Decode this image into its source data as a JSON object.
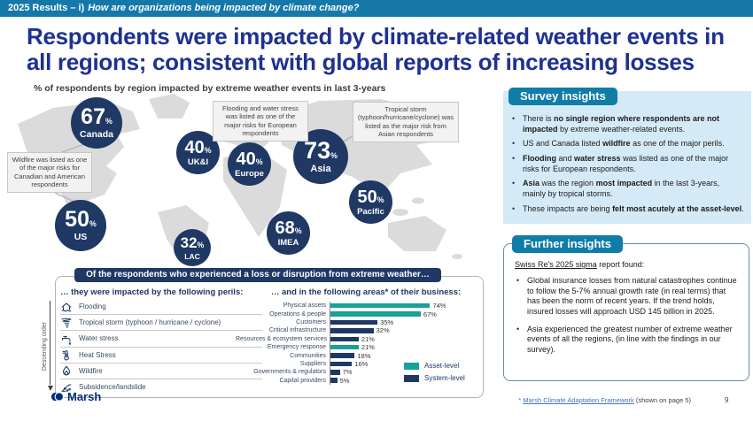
{
  "header": {
    "prefix": "2025 Results – i)",
    "question": "How are organizations being impacted by climate change?"
  },
  "title": {
    "line1": "Respondents were impacted by climate-related weather events in",
    "line2": "all regions; consistent with global reports of increasing losses"
  },
  "map": {
    "subtitle": "% of respondents by region impacted by extreme weather events in last 3-years",
    "percent_sign": "%",
    "regions": [
      {
        "label": "Canada",
        "value": "67"
      },
      {
        "label": "UK&I",
        "value": "40"
      },
      {
        "label": "Europe",
        "value": "40"
      },
      {
        "label": "Asia",
        "value": "73"
      },
      {
        "label": "Pacific",
        "value": "50"
      },
      {
        "label": "US",
        "value": "50"
      },
      {
        "label": "LAC",
        "value": "32"
      },
      {
        "label": "IMEA",
        "value": "68"
      }
    ],
    "callouts": [
      {
        "text": "Wildfire was listed as one of the major risks for Canadian and American respondents"
      },
      {
        "text": "Flooding and water stress was listed as one of the major risks for European respondents"
      },
      {
        "text": "Tropical storm (typhoon/hurricane/cyclone) was listed as the major risk from Asian respondents"
      }
    ]
  },
  "survey_insights": {
    "title": "Survey insights",
    "bullets": [
      [
        {
          "t": "There is "
        },
        {
          "t": "no single region where respondents are not impacted",
          "b": true
        },
        {
          "t": " by extreme weather-related events."
        }
      ],
      [
        {
          "t": "US and Canada listed "
        },
        {
          "t": "wildfire",
          "b": true
        },
        {
          "t": " as one of the major perils."
        }
      ],
      [
        {
          "t": "Flooding",
          "b": true
        },
        {
          "t": " and "
        },
        {
          "t": "water stress",
          "b": true
        },
        {
          "t": " was listed as one of the major risks for European respondents."
        }
      ],
      [
        {
          "t": "Asia",
          "b": true
        },
        {
          "t": " was the region "
        },
        {
          "t": "most impacted",
          "b": true
        },
        {
          "t": " in the last 3-years, mainly by tropical storms."
        }
      ],
      [
        {
          "t": "These impacts are being "
        },
        {
          "t": "felt most acutely at the asset-level",
          "b": true
        },
        {
          "t": "."
        }
      ]
    ]
  },
  "further_insights": {
    "title": "Further insights",
    "intro": [
      {
        "t": "Swiss Re's 2025 sigma",
        "u": true
      },
      {
        "t": " report found:"
      }
    ],
    "bullets": [
      "Global insurance losses from natural catastrophes continue to follow the 5-7% annual growth rate (in real terms) that has been the norm of recent years. If the trend holds, insured losses will approach USD 145 billion in 2025.",
      "Asia experienced the greatest number of extreme weather events of all the regions, (in line with the findings in our survey)."
    ]
  },
  "bottom_panel": {
    "header": "Of the respondents who experienced a loss or disruption from extreme weather…",
    "perils": {
      "heading": "… they were impacted by the following perils:",
      "axis_label": "Descending order",
      "items": [
        {
          "label": "Flooding",
          "icon": "house-flood-icon"
        },
        {
          "label": "Tropical storm (typhoon / hurricane / cyclone)",
          "icon": "tornado-icon"
        },
        {
          "label": "Water stress",
          "icon": "faucet-icon"
        },
        {
          "label": "Heat Stress",
          "icon": "thermometer-icon"
        },
        {
          "label": "Wildfire",
          "icon": "flame-icon"
        },
        {
          "label": "Subsidence/landslide",
          "icon": "landslide-icon"
        }
      ]
    }
  },
  "chart_data": {
    "type": "bar",
    "orientation": "horizontal",
    "title": "… and in the following areas* of their business:",
    "categories": [
      "Physical assets",
      "Operations & people",
      "Customers",
      "Critical infrastructure",
      "Resources & ecosystem services",
      "Emergency response",
      "Communities",
      "Suppliers",
      "Governments & regulators",
      "Capital providers"
    ],
    "values": [
      74,
      67,
      35,
      32,
      21,
      21,
      18,
      16,
      7,
      5
    ],
    "value_labels": [
      "74%",
      "67%",
      "35%",
      "32%",
      "21%",
      "21%",
      "18%",
      "16%",
      "7%",
      "5%"
    ],
    "series_of": [
      "Asset-level",
      "Asset-level",
      "System-level",
      "System-level",
      "System-level",
      "Asset-level",
      "System-level",
      "System-level",
      "System-level",
      "System-level"
    ],
    "legend": [
      {
        "label": "Asset-level",
        "color": "#16A296"
      },
      {
        "label": "System-level",
        "color": "#1F3864"
      }
    ],
    "xlim": [
      0,
      100
    ],
    "grid": false,
    "legend_position": "bottom-right"
  },
  "footer": {
    "brand": "Marsh",
    "footnote_star": "* ",
    "footnote_link": "Marsh Climate Adaptation Framework",
    "footnote_rest": " (shown on page 5)",
    "page_number": "9"
  },
  "colors": {
    "navy": "#1F3864",
    "topbar_teal": "#1578A8",
    "chip_teal": "#107CA8",
    "title_blue": "#1E3191",
    "panel_light_blue": "#D4EBF7",
    "asset_teal": "#16A296",
    "map_gray": "#DBDBDB",
    "brand_blue": "#002C77"
  }
}
